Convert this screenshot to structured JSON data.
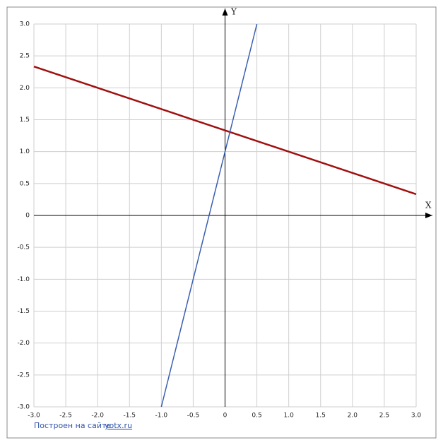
{
  "chart_data": {
    "type": "line",
    "x_label": "X",
    "y_label": "Y",
    "series": [
      {
        "color": "#a01010",
        "x": [
          -3,
          3
        ],
        "values": [
          2.3333,
          0.3333
        ]
      },
      {
        "color": "#3a5fb0",
        "x": [
          -1,
          0.5
        ],
        "values": [
          -3,
          3
        ]
      }
    ],
    "xlim": [
      -3,
      3
    ],
    "ylim": [
      -3,
      3
    ],
    "xticks": [
      {
        "value": -3,
        "label": "-3.0"
      },
      -2.5,
      {
        "value": -2,
        "label": "-2.0"
      },
      -1.5,
      {
        "value": -1,
        "label": "-1.0"
      },
      -0.5,
      0,
      0.5,
      {
        "value": 1,
        "label": "1.0"
      },
      1.5,
      {
        "value": 2,
        "label": "2.0"
      },
      2.5,
      {
        "value": 3,
        "label": "3.0"
      }
    ],
    "yticks": [
      {
        "value": -3,
        "label": "-3.0"
      },
      -2.5,
      {
        "value": -2,
        "label": "-2.0"
      },
      -1.5,
      {
        "value": -1,
        "label": "-1.0"
      },
      -0.5,
      0,
      0.5,
      {
        "value": 1,
        "label": "1.0"
      },
      1.5,
      {
        "value": 2,
        "label": "2.0"
      },
      2.5,
      {
        "value": 3,
        "label": "3.0"
      }
    ],
    "grid": true,
    "footer": {
      "text": "Построен на сайте",
      "link": "yotx.ru"
    }
  }
}
